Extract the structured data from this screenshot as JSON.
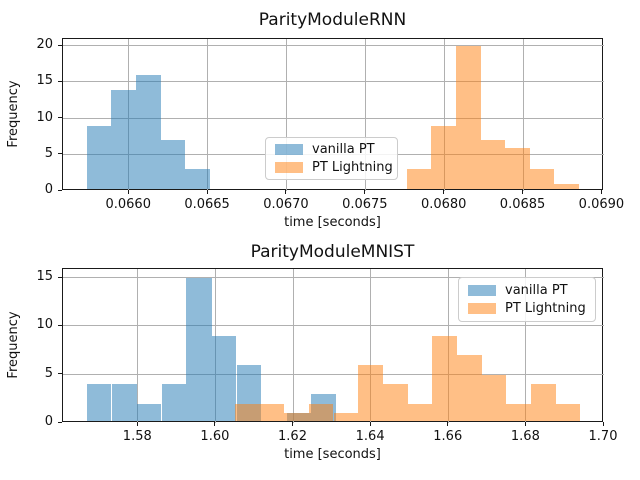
{
  "colors": {
    "vanilla_pt_fill": "rgba(31,119,180,0.5)",
    "pt_lightning_fill": "rgba(255,127,14,0.5)",
    "grid": "#b0b0b0",
    "spine": "#1a1a1a",
    "legend_border": "#cccccc",
    "background": "#ffffff"
  },
  "legend_labels": [
    "vanilla PT",
    "PT Lightning"
  ],
  "chart_data": [
    {
      "type": "bar",
      "subtype": "histogram",
      "title": "ParityModuleRNN",
      "xlabel": "time [seconds]",
      "ylabel": "Frequency",
      "xlim": [
        0.06558,
        0.06901
      ],
      "ylim": [
        0,
        21
      ],
      "xticks": [
        0.066,
        0.0665,
        0.067,
        0.0675,
        0.068,
        0.0685,
        0.069
      ],
      "xtick_labels": [
        "0.0660",
        "0.0665",
        "0.0670",
        "0.0675",
        "0.0680",
        "0.0685",
        "0.0690"
      ],
      "yticks": [
        0,
        5,
        10,
        15,
        20
      ],
      "ytick_labels": [
        "0",
        "5",
        "10",
        "15",
        "20"
      ],
      "grid": true,
      "legend_position": "center",
      "series": [
        {
          "name": "vanilla PT",
          "color_key": "vanilla_pt_fill",
          "bin_edges": [
            0.065731,
            0.065887,
            0.066043,
            0.066199,
            0.066354,
            0.06651
          ],
          "counts": [
            9,
            14,
            16,
            7,
            3
          ]
        },
        {
          "name": "PT Lightning",
          "color_key": "pt_lightning_fill",
          "bin_edges": [
            0.06776,
            0.067916,
            0.068072,
            0.068228,
            0.068384,
            0.068539,
            0.068695,
            0.068851
          ],
          "counts": [
            3,
            9,
            20,
            7,
            6,
            3,
            1
          ]
        }
      ]
    },
    {
      "type": "bar",
      "subtype": "histogram",
      "title": "ParityModuleMNIST",
      "xlabel": "time [seconds]",
      "ylabel": "Frequency",
      "xlim": [
        1.5606,
        1.7
      ],
      "ylim": [
        0,
        15.94
      ],
      "xticks": [
        1.58,
        1.6,
        1.62,
        1.64,
        1.66,
        1.68,
        1.7
      ],
      "xtick_labels": [
        "1.58",
        "1.60",
        "1.62",
        "1.64",
        "1.66",
        "1.68",
        "1.70"
      ],
      "yticks": [
        0,
        5,
        10,
        15
      ],
      "ytick_labels": [
        "0",
        "5",
        "10",
        "15"
      ],
      "grid": true,
      "legend_position": "upper right",
      "series": [
        {
          "name": "vanilla PT",
          "color_key": "vanilla_pt_fill",
          "bin_edges": [
            1.5667,
            1.5731,
            1.5796,
            1.586,
            1.5924,
            1.5989,
            1.6053,
            1.6117,
            1.6182,
            1.6246,
            1.631
          ],
          "counts": [
            4,
            4,
            2,
            4,
            15,
            9,
            6,
            0,
            1,
            3
          ]
        },
        {
          "name": "PT Lightning",
          "color_key": "pt_lightning_fill",
          "bin_edges": [
            1.6048,
            1.6111,
            1.6175,
            1.6239,
            1.6303,
            1.6366,
            1.643,
            1.6494,
            1.6557,
            1.6621,
            1.6685,
            1.6748,
            1.6812,
            1.6876,
            1.6939
          ],
          "counts": [
            2,
            2,
            1,
            2,
            1,
            6,
            4,
            2,
            9,
            7,
            5,
            2,
            4,
            2
          ]
        }
      ]
    }
  ]
}
